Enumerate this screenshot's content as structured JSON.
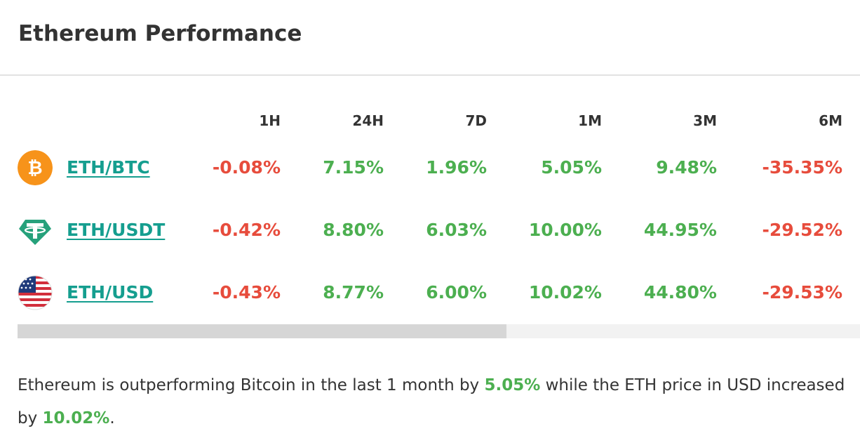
{
  "title": "Ethereum Performance",
  "columns": [
    "1H",
    "24H",
    "7D",
    "1M",
    "3M",
    "6M"
  ],
  "rows": [
    {
      "icon": "bitcoin-icon",
      "pair": "ETH/BTC",
      "values": [
        "-0.08%",
        "7.15%",
        "1.96%",
        "5.05%",
        "9.48%",
        "-35.35%"
      ],
      "trend": [
        "neg",
        "pos",
        "pos",
        "pos",
        "pos",
        "neg"
      ]
    },
    {
      "icon": "tether-icon",
      "pair": "ETH/USDT",
      "values": [
        "-0.42%",
        "8.80%",
        "6.03%",
        "10.00%",
        "44.95%",
        "-29.52%"
      ],
      "trend": [
        "neg",
        "pos",
        "pos",
        "pos",
        "pos",
        "neg"
      ]
    },
    {
      "icon": "us-flag-icon",
      "pair": "ETH/USD",
      "values": [
        "-0.43%",
        "8.77%",
        "6.00%",
        "10.02%",
        "44.80%",
        "-29.53%"
      ],
      "trend": [
        "neg",
        "pos",
        "pos",
        "pos",
        "pos",
        "neg"
      ]
    }
  ],
  "summary": {
    "part1": "Ethereum is outperforming Bitcoin in the last 1 month by ",
    "btc_change": "5.05%",
    "part2": " while the ETH price in USD increased by ",
    "usd_change": "10.02%",
    "part3": "."
  },
  "colors": {
    "positive": "#4caf50",
    "negative": "#e74c3c",
    "link": "#159e8f",
    "bitcoin": "#f7931a",
    "tether": "#26a17b"
  },
  "scrollbar": {
    "thumb_fraction": 0.58
  }
}
